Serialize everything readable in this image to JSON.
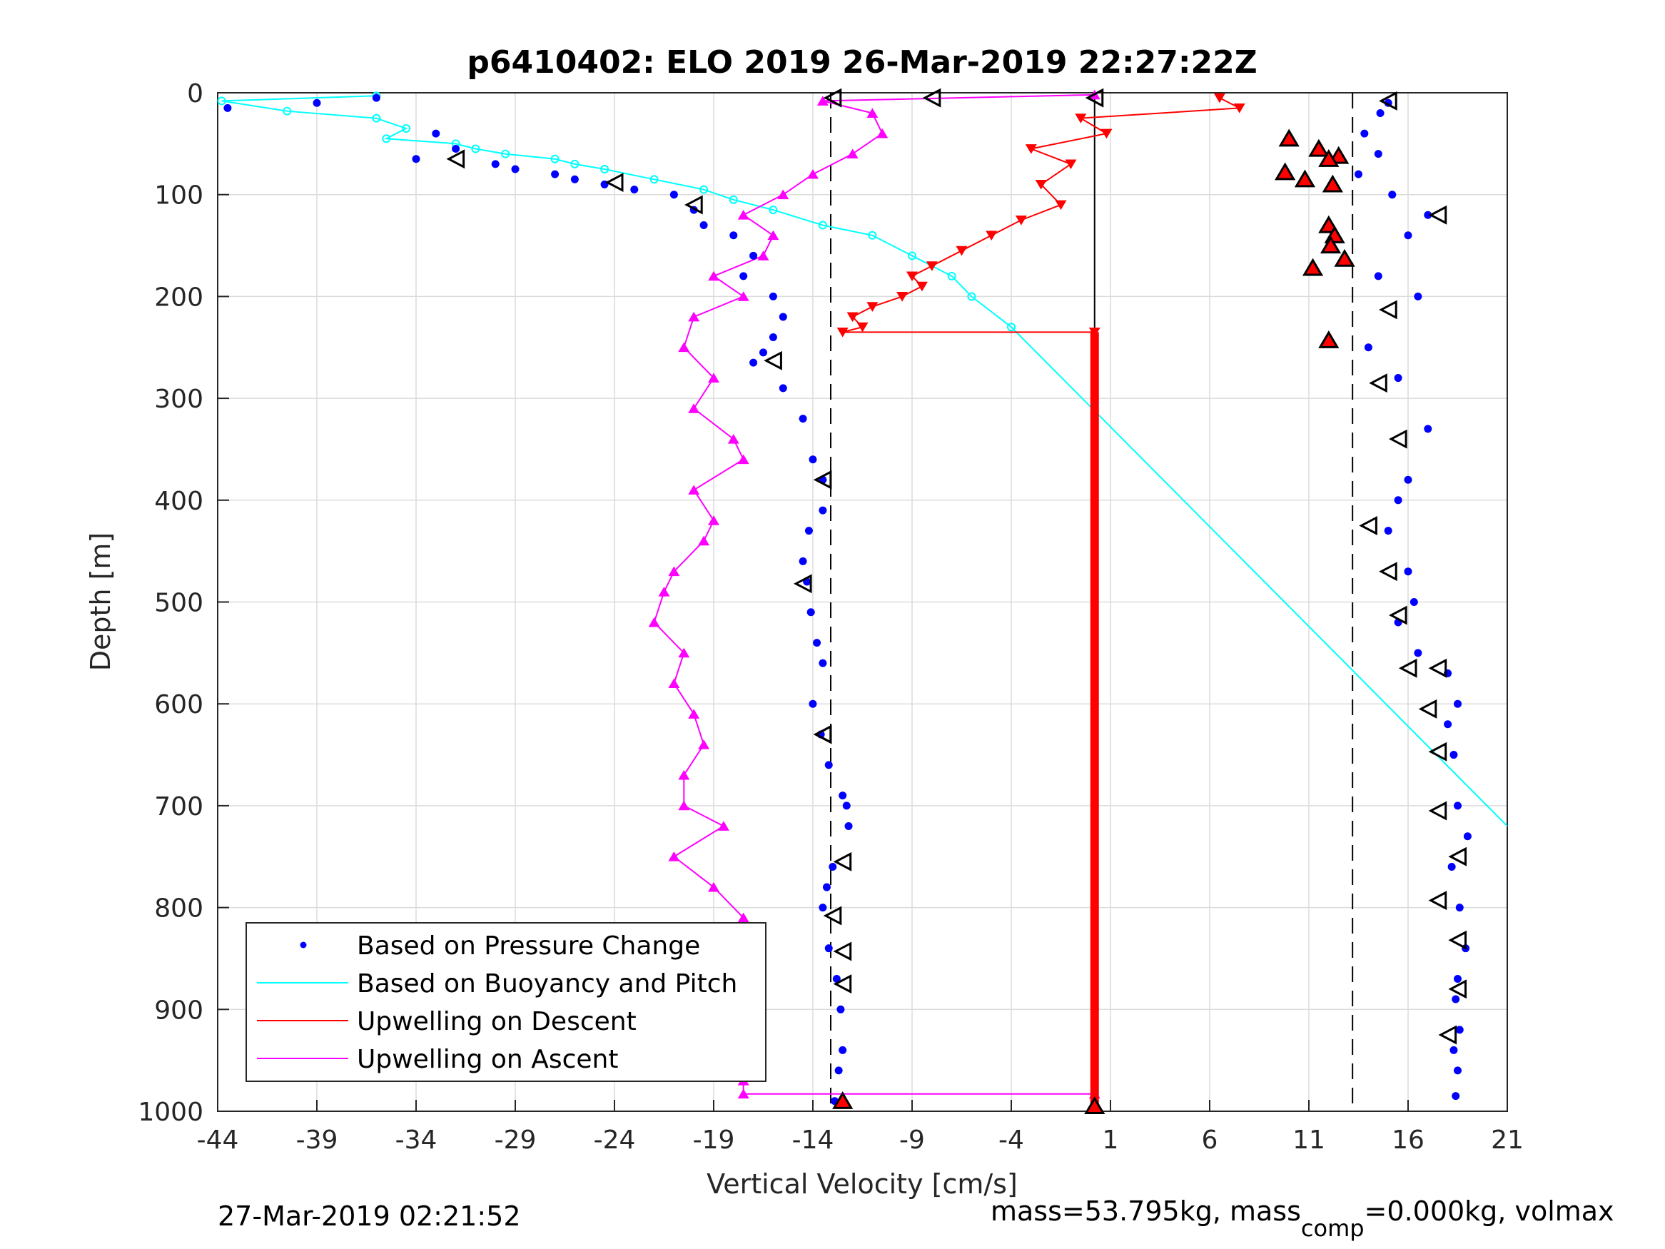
{
  "chart_data": {
    "type": "scatter",
    "title": "p6410402: ELO 2019 26-Mar-2019 22:27:22Z",
    "xlabel": "Vertical Velocity [cm/s]",
    "ylabel": "Depth [m]",
    "xlim": [
      -44,
      21
    ],
    "ylim": [
      0,
      1000
    ],
    "y_reversed": true,
    "grid": true,
    "xticks": [
      "-44",
      "-39",
      "-34",
      "-29",
      "-24",
      "-19",
      "-14",
      "-9",
      "-4",
      "1",
      "6",
      "11",
      "16",
      "21"
    ],
    "yticks": [
      "0",
      "100",
      "200",
      "300",
      "400",
      "500",
      "600",
      "700",
      "800",
      "900",
      "1000"
    ],
    "legend_position": "bottom-left",
    "reference_lines": {
      "dashed_x": [
        -13.1,
        13.2
      ],
      "solid_x": [
        0.2
      ]
    },
    "series": [
      {
        "name": "Based on Pressure Change",
        "marker": "dot",
        "color": "#0000ff",
        "segments": [
          {
            "x": [
              -36,
              -39,
              -43.5,
              -33,
              -32,
              -34,
              -30,
              -29,
              -27,
              -26,
              -24.5,
              -23,
              -21,
              -20,
              -19.5,
              -18,
              -17,
              -17.5,
              -16,
              -15.5,
              -16,
              -16.5,
              -17,
              -15.5,
              -14.5,
              -14,
              -13.5,
              -13.5,
              -14.2,
              -14.5,
              -14.3,
              -14.1,
              -13.8,
              -13.5,
              -14,
              -13.6,
              -13.2,
              -12.5,
              -12.3,
              -12.2,
              -13,
              -13.3,
              -13.5,
              -13.2,
              -12.8,
              -12.6,
              -12.5,
              -12.7,
              -12.9
            ],
            "y": [
              5,
              10,
              15,
              40,
              55,
              65,
              70,
              75,
              80,
              85,
              90,
              95,
              100,
              115,
              130,
              140,
              160,
              180,
              200,
              220,
              240,
              255,
              265,
              290,
              320,
              360,
              380,
              410,
              430,
              460,
              480,
              510,
              540,
              560,
              600,
              630,
              660,
              690,
              700,
              720,
              760,
              780,
              800,
              840,
              870,
              900,
              940,
              960,
              990
            ]
          },
          {
            "x": [
              15,
              14.6,
              13.8,
              14.5,
              13.5,
              15.2,
              17,
              16,
              14.5,
              16.5,
              14,
              15.5,
              17,
              16,
              15.5,
              15,
              16,
              16.3,
              15.5,
              16.5,
              18,
              18.5,
              18,
              18.3,
              18.5,
              19,
              18.2,
              18.6,
              18.9,
              18.5,
              18.4,
              18.6,
              18.3,
              18.5,
              18.4
            ],
            "y": [
              10,
              20,
              40,
              60,
              80,
              100,
              120,
              140,
              180,
              200,
              250,
              280,
              330,
              380,
              400,
              430,
              470,
              500,
              520,
              550,
              570,
              600,
              620,
              650,
              700,
              730,
              760,
              800,
              840,
              870,
              890,
              920,
              940,
              960,
              985
            ]
          }
        ]
      },
      {
        "name": "Based on Buoyancy and Pitch",
        "marker": "circle-line",
        "color": "#00ffff",
        "x": [
          -36,
          -43.8,
          -40.5,
          -36,
          -34.5,
          -35.5,
          -32,
          -31,
          -29.5,
          -27,
          -26,
          -24.5,
          -22,
          -19.5,
          -18,
          -16,
          -13.5,
          -11,
          -9,
          -7,
          -6,
          -4
        ],
        "y": [
          3,
          8,
          18,
          25,
          35,
          45,
          50,
          55,
          60,
          65,
          70,
          75,
          85,
          95,
          105,
          115,
          130,
          140,
          160,
          180,
          200,
          230
        ],
        "extension_x": [
          -4,
          21
        ],
        "extension_y": [
          230,
          720
        ]
      },
      {
        "name": "Upwelling on Descent",
        "marker": "triangle-down",
        "color": "#ff0000",
        "x": [
          6.5,
          7.5,
          -0.5,
          0.8,
          -3,
          -1,
          -2.5,
          -1.5,
          -3.5,
          -5,
          -6.5,
          -8,
          -9,
          -8.5,
          -9.5,
          -11,
          -12,
          -11.5,
          -12.5,
          0.2
        ],
        "y": [
          5,
          15,
          25,
          40,
          55,
          70,
          90,
          110,
          125,
          140,
          155,
          170,
          180,
          190,
          200,
          210,
          220,
          230,
          235,
          235
        ],
        "column_x": 0.2,
        "column_range": [
          235,
          995
        ]
      },
      {
        "name": "Upwelling on Ascent",
        "marker": "triangle-up",
        "color": "#ff00ff",
        "x": [
          0.2,
          -13.5,
          -11,
          -10.5,
          -12,
          -14,
          -15.5,
          -17.5,
          -16,
          -16.5,
          -19,
          -17.5,
          -20,
          -20.5,
          -19,
          -20,
          -18,
          -17.5,
          -20,
          -19,
          -19.5,
          -21,
          -21.5,
          -22,
          -20.5,
          -21,
          -20,
          -19.5,
          -20.5,
          -20.5,
          -18.5,
          -21,
          -19,
          -17.5,
          -18,
          -19.5,
          -17.5,
          -18,
          -17.5,
          -17.5,
          -17.5,
          0.2
        ],
        "y": [
          2,
          8,
          20,
          40,
          60,
          80,
          100,
          120,
          140,
          160,
          180,
          200,
          220,
          250,
          280,
          310,
          340,
          360,
          390,
          420,
          440,
          470,
          490,
          520,
          550,
          580,
          610,
          640,
          670,
          700,
          720,
          750,
          780,
          810,
          840,
          870,
          900,
          920,
          950,
          970,
          983,
          983
        ]
      },
      {
        "name": "",
        "marker": "triangle-outline",
        "color": "#000000",
        "x": [
          -8,
          -32,
          -24,
          -20,
          15,
          17.5,
          -16,
          15,
          -13.5,
          14.5,
          15.5,
          14,
          15,
          15.5,
          -14.5,
          16,
          17.5,
          -13.5,
          17,
          -13.5,
          17.5,
          -12.5,
          17.5,
          18.5,
          -13,
          17.5,
          -12.5,
          18.5,
          18.5,
          18,
          -12.5,
          -13,
          0.2
        ],
        "y": [
          5,
          65,
          88,
          110,
          8,
          120,
          263,
          213,
          380,
          285,
          340,
          425,
          470,
          513,
          482,
          565,
          565,
          630,
          605,
          630,
          647,
          755,
          705,
          750,
          808,
          793,
          875,
          832,
          880,
          925,
          843,
          5,
          5
        ]
      },
      {
        "name": "",
        "marker": "triangle-filled-red",
        "color": "#ff0000",
        "x": [
          10,
          11.5,
          12.5,
          9.8,
          12,
          10.8,
          12.2,
          12,
          12.3,
          12.1,
          12.8,
          11.2,
          12,
          -12.5,
          0.2
        ],
        "y": [
          45,
          55,
          62,
          78,
          65,
          85,
          90,
          130,
          140,
          150,
          163,
          172,
          243,
          990,
          995
        ]
      }
    ],
    "footer_left": "27-Mar-2019 02:21:52",
    "footer_right": "mass=53.795kg, mass",
    "footer_right_sub": "comp",
    "footer_right_tail": "=0.000kg, volmax"
  }
}
